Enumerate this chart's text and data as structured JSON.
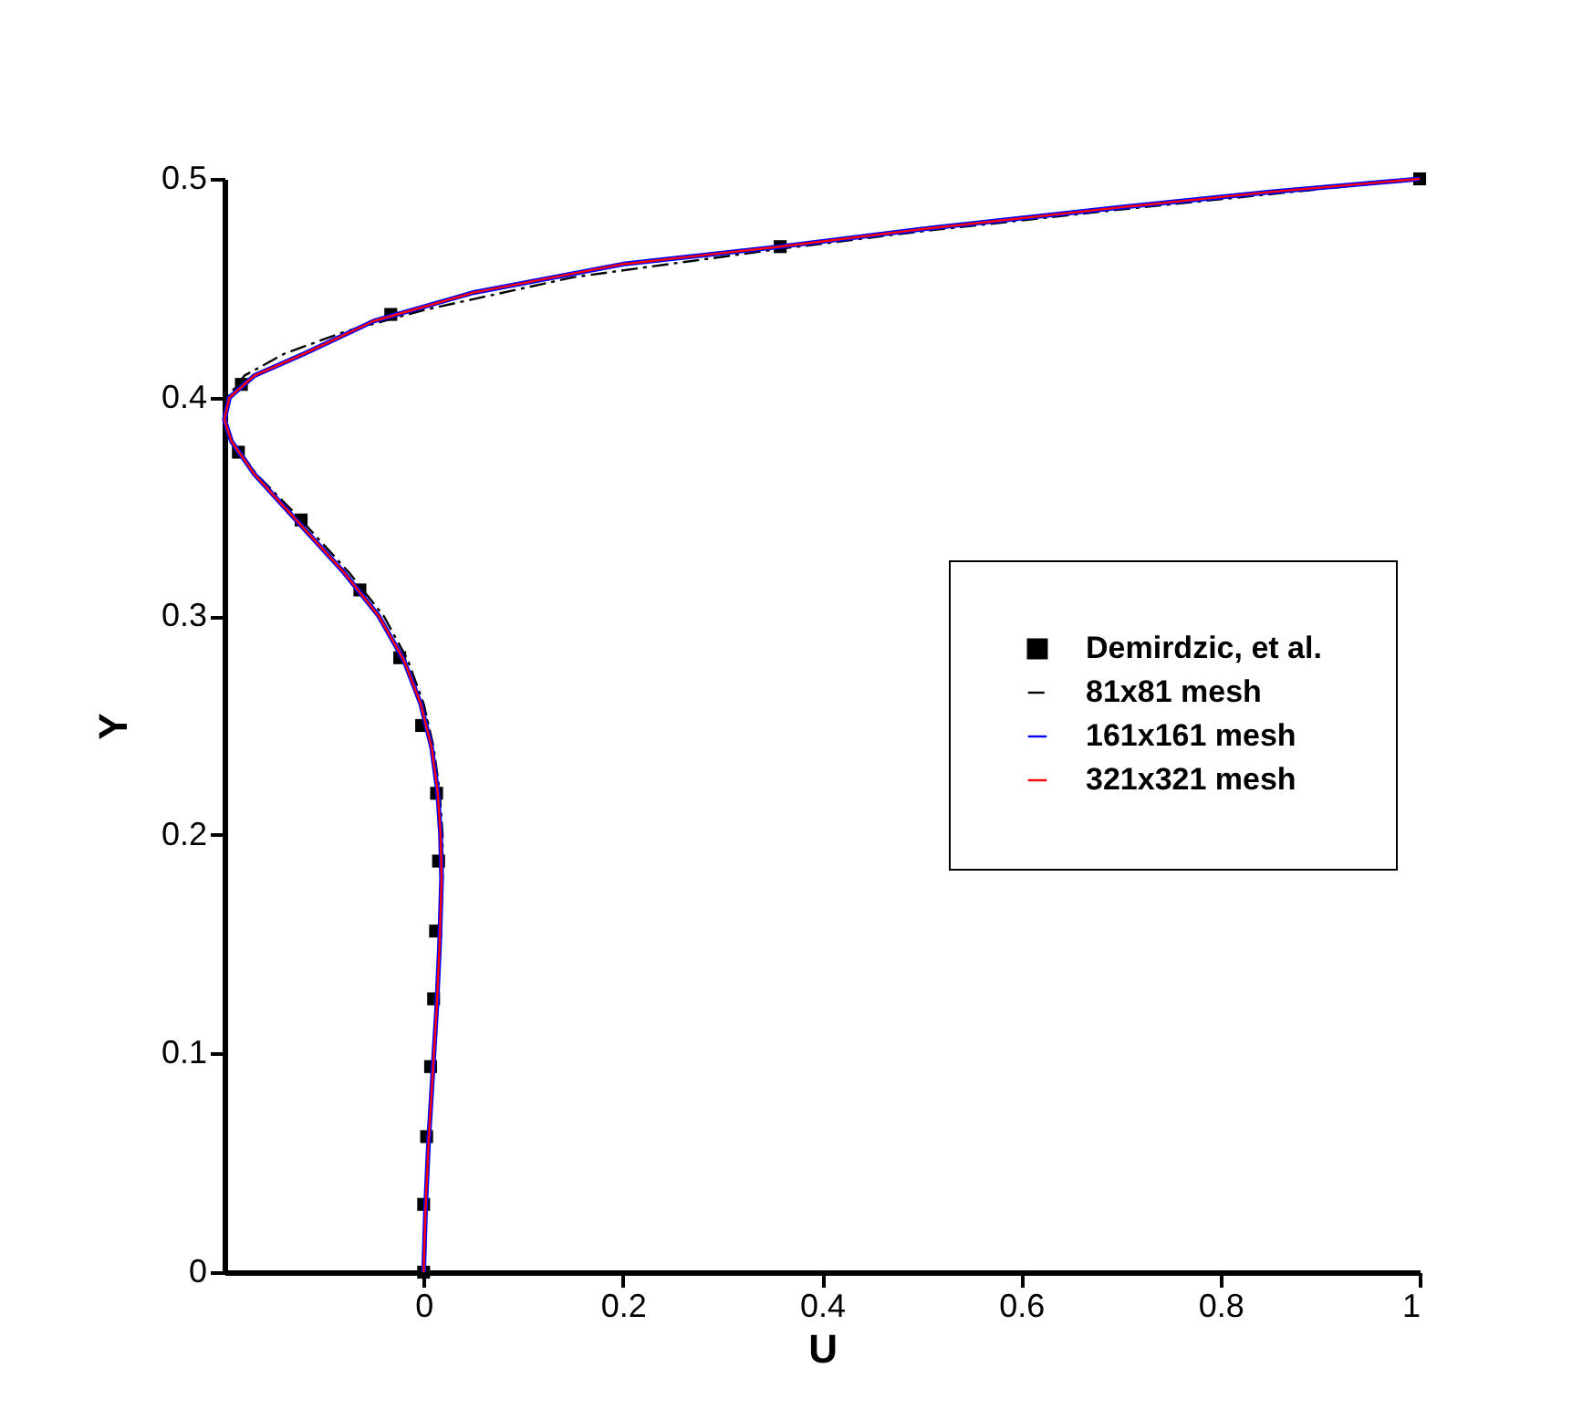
{
  "chart_data": {
    "type": "line",
    "xlabel": "U",
    "ylabel": "Y",
    "xlim": [
      -0.2,
      1
    ],
    "ylim": [
      0,
      0.5
    ],
    "xticks": [
      0,
      0.2,
      0.4,
      0.6,
      0.8,
      1
    ],
    "yticks": [
      0,
      0.1,
      0.2,
      0.3,
      0.4,
      0.5
    ],
    "grid": false,
    "legend": "right",
    "series": [
      {
        "name": "Demirdzic, et al.",
        "type": "scatter",
        "marker": "square",
        "color": "#000000",
        "x": [
          0,
          0,
          0.003,
          0.007,
          0.01,
          0.012,
          0.015,
          0.013,
          -0.002,
          -0.024,
          -0.064,
          -0.123,
          -0.186,
          -0.183,
          -0.033,
          0.358,
          1.0
        ],
        "values": [
          0,
          0.031,
          0.062,
          0.094,
          0.125,
          0.156,
          0.188,
          0.219,
          0.25,
          0.281,
          0.312,
          0.344,
          0.375,
          0.406,
          0.438,
          0.469,
          0.5
        ]
      },
      {
        "name": "81x81 mesh",
        "line_style": "dashed",
        "color": "#000000",
        "x": [
          0,
          0.002,
          0.005,
          0.009,
          0.013,
          0.016,
          0.019,
          0.019,
          0.016,
          0.01,
          0.0,
          -0.016,
          -0.04,
          -0.075,
          -0.125,
          -0.168,
          -0.192,
          -0.2,
          -0.197,
          -0.18,
          -0.14,
          -0.08,
          0.0,
          0.15,
          0.358,
          0.5,
          0.7,
          0.85,
          1
        ],
        "values": [
          0,
          0.03,
          0.06,
          0.09,
          0.12,
          0.15,
          0.18,
          0.2,
          0.22,
          0.24,
          0.26,
          0.28,
          0.3,
          0.32,
          0.345,
          0.365,
          0.38,
          0.39,
          0.4,
          0.41,
          0.42,
          0.43,
          0.44,
          0.455,
          0.468,
          0.476,
          0.486,
          0.493,
          0.5
        ]
      },
      {
        "name": "161x161 mesh",
        "line_style": "solid",
        "color": "#0000ff",
        "x": [
          0,
          0.002,
          0.005,
          0.009,
          0.013,
          0.016,
          0.018,
          0.017,
          0.014,
          0.008,
          -0.003,
          -0.02,
          -0.045,
          -0.08,
          -0.13,
          -0.17,
          -0.193,
          -0.2,
          -0.195,
          -0.17,
          -0.12,
          -0.05,
          0.05,
          0.2,
          0.358,
          0.5,
          0.7,
          0.85,
          1
        ],
        "values": [
          0,
          0.03,
          0.06,
          0.09,
          0.12,
          0.15,
          0.18,
          0.2,
          0.22,
          0.24,
          0.26,
          0.28,
          0.3,
          0.32,
          0.345,
          0.365,
          0.38,
          0.39,
          0.4,
          0.41,
          0.42,
          0.435,
          0.448,
          0.461,
          0.469,
          0.477,
          0.487,
          0.494,
          0.5
        ]
      },
      {
        "name": "321x321 mesh",
        "line_style": "solid",
        "color": "#ff0000",
        "x": [
          0,
          0.002,
          0.005,
          0.009,
          0.013,
          0.016,
          0.018,
          0.017,
          0.014,
          0.008,
          -0.003,
          -0.02,
          -0.045,
          -0.08,
          -0.13,
          -0.17,
          -0.193,
          -0.2,
          -0.195,
          -0.17,
          -0.12,
          -0.05,
          0.05,
          0.2,
          0.358,
          0.5,
          0.7,
          0.85,
          1
        ],
        "values": [
          0,
          0.03,
          0.06,
          0.09,
          0.12,
          0.15,
          0.18,
          0.2,
          0.22,
          0.24,
          0.26,
          0.28,
          0.3,
          0.32,
          0.345,
          0.365,
          0.38,
          0.39,
          0.4,
          0.41,
          0.42,
          0.435,
          0.448,
          0.461,
          0.469,
          0.477,
          0.487,
          0.494,
          0.5
        ]
      }
    ]
  }
}
